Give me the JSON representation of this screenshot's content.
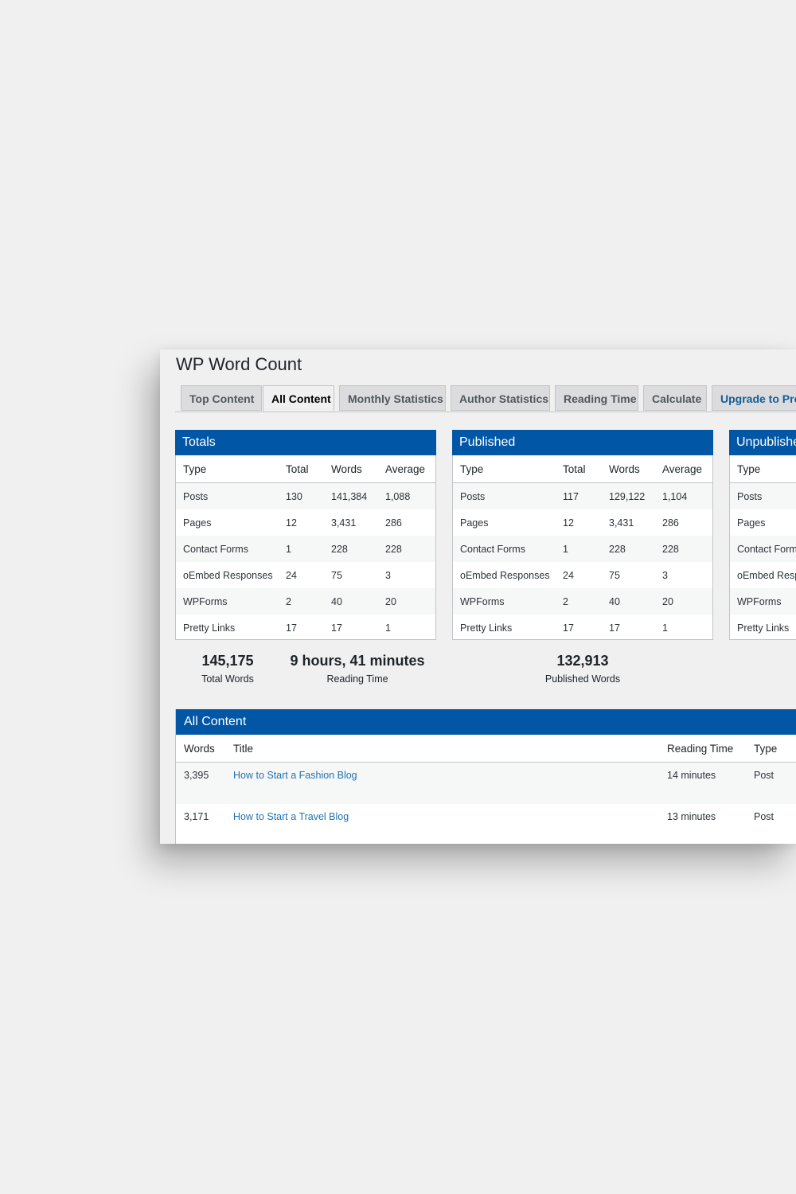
{
  "page": {
    "title": "WP Word Count"
  },
  "tabs": [
    {
      "label": "Top Content",
      "active": false
    },
    {
      "label": "All Content",
      "active": true
    },
    {
      "label": "Monthly Statistics",
      "active": false
    },
    {
      "label": "Author Statistics",
      "active": false
    },
    {
      "label": "Reading Time",
      "active": false
    },
    {
      "label": "Calculate",
      "active": false
    },
    {
      "label": "Upgrade to Pro",
      "active": false
    }
  ],
  "columns": {
    "type": "Type",
    "total": "Total",
    "words": "Words",
    "average": "Average"
  },
  "totals": {
    "title": "Totals",
    "rows": [
      {
        "type": "Posts",
        "total": "130",
        "words": "141,384",
        "average": "1,088"
      },
      {
        "type": "Pages",
        "total": "12",
        "words": "3,431",
        "average": "286"
      },
      {
        "type": "Contact Forms",
        "total": "1",
        "words": "228",
        "average": "228"
      },
      {
        "type": "oEmbed Responses",
        "total": "24",
        "words": "75",
        "average": "3"
      },
      {
        "type": "WPForms",
        "total": "2",
        "words": "40",
        "average": "20"
      },
      {
        "type": "Pretty Links",
        "total": "17",
        "words": "17",
        "average": "1"
      }
    ]
  },
  "published": {
    "title": "Published",
    "rows": [
      {
        "type": "Posts",
        "total": "117",
        "words": "129,122",
        "average": "1,104"
      },
      {
        "type": "Pages",
        "total": "12",
        "words": "3,431",
        "average": "286"
      },
      {
        "type": "Contact Forms",
        "total": "1",
        "words": "228",
        "average": "228"
      },
      {
        "type": "oEmbed Responses",
        "total": "24",
        "words": "75",
        "average": "3"
      },
      {
        "type": "WPForms",
        "total": "2",
        "words": "40",
        "average": "20"
      },
      {
        "type": "Pretty Links",
        "total": "17",
        "words": "17",
        "average": "1"
      }
    ]
  },
  "unpublished": {
    "title": "Unpublished",
    "rows": [
      {
        "type": "Posts"
      },
      {
        "type": "Pages"
      },
      {
        "type": "Contact Forms"
      },
      {
        "type": "oEmbed Responses"
      },
      {
        "type": "WPForms"
      },
      {
        "type": "Pretty Links"
      }
    ]
  },
  "summary": {
    "total_words": {
      "value": "145,175",
      "label": "Total Words"
    },
    "reading_time": {
      "value": "9 hours, 41 minutes",
      "label": "Reading Time"
    },
    "published_words": {
      "value": "132,913",
      "label": "Published Words"
    }
  },
  "all_content": {
    "title": "All Content",
    "columns": {
      "words": "Words",
      "title": "Title",
      "reading_time": "Reading Time",
      "type": "Type"
    },
    "rows": [
      {
        "words": "3,395",
        "title": "How to Start a Fashion Blog",
        "reading_time": "14 minutes",
        "type": "Post"
      },
      {
        "words": "3,171",
        "title": "How to Start a Travel Blog",
        "reading_time": "13 minutes",
        "type": "Post"
      }
    ]
  }
}
